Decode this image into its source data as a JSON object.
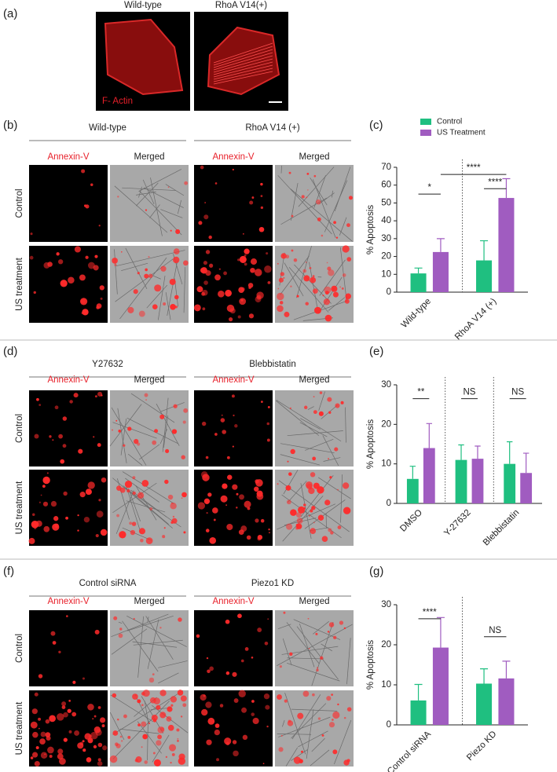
{
  "panels": {
    "a": {
      "label": "(a)",
      "columns": [
        "Wild-type",
        "RhoA V14(+)"
      ],
      "stain": "F- Actin"
    },
    "b": {
      "label": "(b)",
      "columns": [
        "Wild-type",
        "RhoA V14 (+)"
      ],
      "channels": [
        "Annexin-V",
        "Merged",
        "Annexin-V",
        "Merged"
      ],
      "rows": [
        "Control",
        "US treatment"
      ]
    },
    "c": {
      "label": "(c)"
    },
    "d": {
      "label": "(d)",
      "columns": [
        "Y27632",
        "Blebbistatin"
      ],
      "channels": [
        "Annexin-V",
        "Merged",
        "Annexin-V",
        "Merged"
      ],
      "rows": [
        "Control",
        "US treatment"
      ]
    },
    "e": {
      "label": "(e)"
    },
    "f": {
      "label": "(f)",
      "columns": [
        "Control siRNA",
        "Piezo1 KD"
      ],
      "channels": [
        "Annexin-V",
        "Merged",
        "Annexin-V",
        "Merged"
      ],
      "rows": [
        "Control",
        "US treatment"
      ]
    },
    "g": {
      "label": "(g)"
    }
  },
  "chart_data": [
    {
      "type": "bar",
      "y_label": "% Apoptosis",
      "categories": [
        "Wild-type",
        "RhoA V14 (+)"
      ],
      "series": [
        {
          "name": "Control",
          "color": "#1fbf80",
          "values": [
            10.5,
            17.8
          ],
          "errors": [
            3,
            11
          ]
        },
        {
          "name": "US Treatment",
          "color": "#a05cc0",
          "values": [
            22.5,
            52.8
          ],
          "errors": [
            7.5,
            10.8
          ]
        }
      ],
      "ylim": [
        0,
        70
      ],
      "yticks": [
        0,
        10,
        20,
        30,
        40,
        50,
        60,
        70
      ],
      "legend": "top",
      "annotations": [
        "*",
        "****",
        "****"
      ]
    },
    {
      "type": "bar",
      "y_label": "% Apoptosis",
      "categories": [
        "DMSO",
        "Y-27632",
        "Blebbistatin"
      ],
      "series": [
        {
          "name": "Control",
          "color": "#1fbf80",
          "values": [
            6.2,
            11,
            10
          ],
          "errors": [
            3.2,
            3.8,
            5.6
          ]
        },
        {
          "name": "US Treatment",
          "color": "#a05cc0",
          "values": [
            14,
            11.3,
            7.7
          ],
          "errors": [
            6.2,
            3.2,
            5
          ]
        }
      ],
      "ylim": [
        0,
        30
      ],
      "yticks": [
        0,
        10,
        20,
        30
      ],
      "annotations": [
        "**",
        "NS",
        "NS"
      ]
    },
    {
      "type": "bar",
      "y_label": "% Apoptosis",
      "categories": [
        "Control siRNA",
        "Piezo KD"
      ],
      "series": [
        {
          "name": "Control",
          "color": "#1fbf80",
          "values": [
            6.1,
            10.3
          ],
          "errors": [
            4,
            3.7
          ]
        },
        {
          "name": "US Treatment",
          "color": "#a05cc0",
          "values": [
            19.3,
            11.6
          ],
          "errors": [
            7.5,
            4.3
          ]
        }
      ],
      "ylim": [
        0,
        30
      ],
      "yticks": [
        0,
        10,
        20,
        30
      ],
      "annotations": [
        "****",
        "NS"
      ]
    }
  ]
}
